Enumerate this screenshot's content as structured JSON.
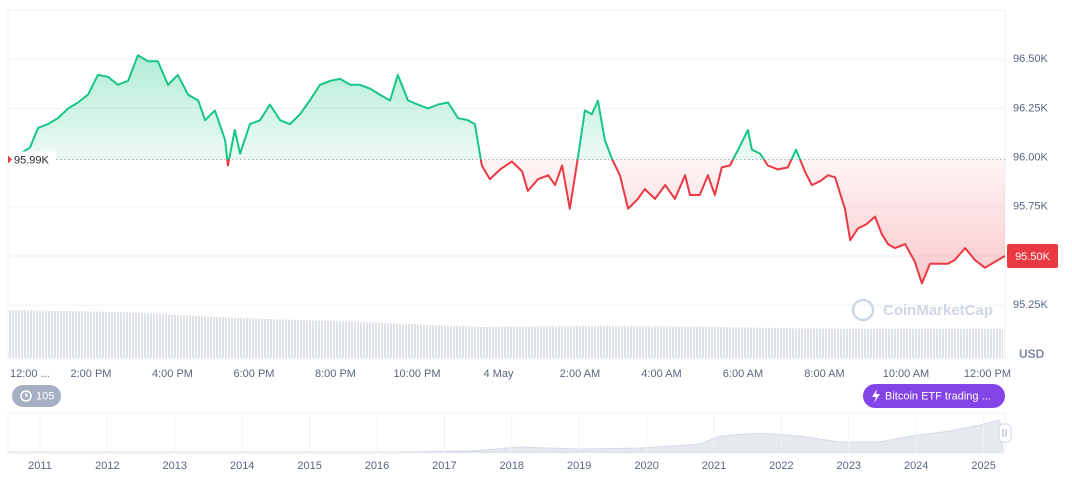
{
  "chart_data": {
    "type": "line",
    "x": [
      0,
      0.26,
      0.5,
      0.7,
      0.94,
      1.19,
      1.44,
      1.68,
      1.93,
      2.17,
      2.42,
      2.66,
      2.91,
      3.15,
      3.4,
      3.64,
      3.89,
      4.13,
      4.38,
      4.63,
      4.8,
      5.04,
      5.29,
      5.36,
      5.53,
      5.66,
      5.9,
      6.15,
      6.39,
      6.64,
      6.88,
      7.13,
      7.37,
      7.62,
      7.87,
      8.11,
      8.36,
      8.6,
      8.85,
      9.09,
      9.34,
      9.53,
      9.78,
      10.02,
      10.27,
      10.52,
      10.76,
      11.01,
      11.25,
      11.42,
      11.59,
      11.79,
      12.04,
      12.33,
      12.58,
      12.72,
      12.97,
      13.22,
      13.39,
      13.56,
      13.75,
      13.95,
      14.12,
      14.29,
      14.44,
      14.61,
      14.79,
      14.98,
      15.18,
      15.42,
      15.59,
      15.84,
      16.09,
      16.33,
      16.58,
      16.7,
      16.94,
      17.14,
      17.31,
      17.48,
      17.68,
      17.88,
      18.12,
      18.22,
      18.42,
      18.61,
      18.86,
      19.1,
      19.3,
      19.52,
      19.69,
      19.89,
      20.09,
      20.26,
      20.5,
      20.63,
      20.82,
      21.02,
      21.24,
      21.41,
      21.56,
      21.73,
      21.98,
      22.22,
      22.39,
      22.59,
      22.79,
      23.03,
      23.2,
      23.45,
      23.69,
      23.94,
      24.18,
      24.43
    ],
    "values": [
      95985,
      96020,
      96050,
      96150,
      96170,
      96200,
      96250,
      96280,
      96320,
      96420,
      96410,
      96370,
      96390,
      96520,
      96490,
      96490,
      96370,
      96420,
      96320,
      96290,
      96190,
      96240,
      96090,
      95960,
      96140,
      96020,
      96170,
      96190,
      96270,
      96190,
      96170,
      96220,
      96290,
      96370,
      96390,
      96400,
      96370,
      96370,
      96350,
      96320,
      96290,
      96420,
      96290,
      96270,
      96250,
      96270,
      96280,
      96200,
      96190,
      96170,
      95960,
      95890,
      95940,
      95980,
      95930,
      95830,
      95890,
      95910,
      95860,
      95960,
      95740,
      96000,
      96240,
      96220,
      96290,
      96090,
      95990,
      95910,
      95740,
      95790,
      95840,
      95790,
      95860,
      95790,
      95910,
      95810,
      95810,
      95910,
      95810,
      95950,
      95960,
      96040,
      96140,
      96040,
      96020,
      95960,
      95940,
      95950,
      96040,
      95930,
      95860,
      95880,
      95910,
      95900,
      95740,
      95580,
      95640,
      95660,
      95700,
      95610,
      95560,
      95540,
      95560,
      95470,
      95360,
      95460,
      95460,
      95460,
      95480,
      95540,
      95480,
      95440,
      95470,
      95500
    ],
    "color_above": "#16c784",
    "color_below": "#ea3943",
    "xlim": [
      0,
      24.43
    ],
    "xticks": [
      {
        "value": 0,
        "label": "12:00 ..."
      },
      {
        "value": 2,
        "label": "2:00 PM"
      },
      {
        "value": 4,
        "label": "4:00 PM"
      },
      {
        "value": 6,
        "label": "6:00 PM"
      },
      {
        "value": 8,
        "label": "8:00 PM"
      },
      {
        "value": 10,
        "label": "10:00 PM"
      },
      {
        "value": 12,
        "label": "4 May"
      },
      {
        "value": 14,
        "label": "2:00 AM"
      },
      {
        "value": 16,
        "label": "4:00 AM"
      },
      {
        "value": 18,
        "label": "6:00 AM"
      },
      {
        "value": 20,
        "label": "8:00 AM"
      },
      {
        "value": 22,
        "label": "10:00 AM"
      },
      {
        "value": 24,
        "label": "12:00 PM"
      }
    ],
    "ylim": [
      95200,
      96750
    ],
    "yticks": [
      {
        "value": 95250,
        "label": "95.25K"
      },
      {
        "value": 95500,
        "label": "95.50K"
      },
      {
        "value": 95750,
        "label": "95.75K"
      },
      {
        "value": 96000,
        "label": "96.00K"
      },
      {
        "value": 96250,
        "label": "96.25K"
      },
      {
        "value": 96500,
        "label": "96.50K"
      }
    ],
    "y_axis_label": "USD",
    "grid": true,
    "reference_line": {
      "value": 95990,
      "label": "95.99K"
    },
    "current_price": {
      "value": 95500,
      "label": "95.50K"
    },
    "watermark": "CoinMarketCap",
    "event_count": 105,
    "event_badge": "Bitcoin ETF trading ...",
    "navigator_years": [
      "2011",
      "2012",
      "2013",
      "2014",
      "2015",
      "2016",
      "2017",
      "2018",
      "2019",
      "2020",
      "2021",
      "2022",
      "2023",
      "2024",
      "2025"
    ]
  }
}
